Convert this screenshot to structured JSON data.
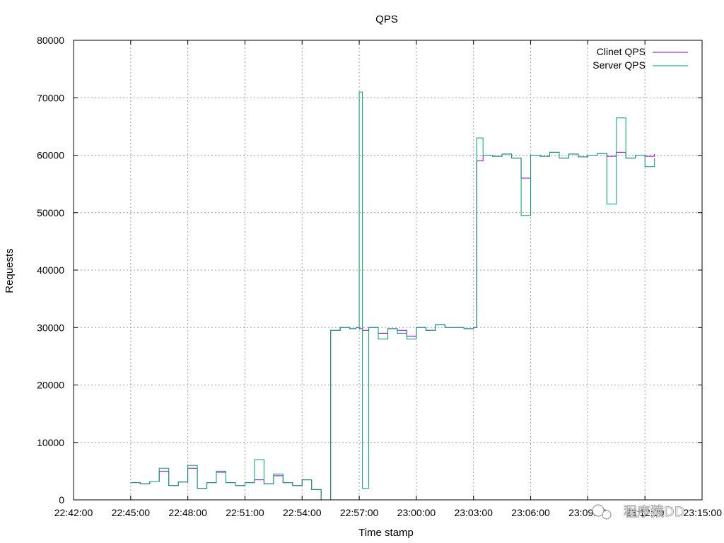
{
  "chart_data": {
    "type": "line",
    "title": "QPS",
    "xlabel": "Time stamp",
    "ylabel": "Requests",
    "ylim": [
      0,
      80000
    ],
    "yticks": [
      "0",
      "10000",
      "20000",
      "30000",
      "40000",
      "50000",
      "60000",
      "70000",
      "80000"
    ],
    "xlim": [
      "22:42:00",
      "23:15:00"
    ],
    "xticks": [
      "22:42:00",
      "22:45:00",
      "22:48:00",
      "22:51:00",
      "22:54:00",
      "22:57:00",
      "23:00:00",
      "23:03:00",
      "23:06:00",
      "23:09:00",
      "23:12:00",
      "23:15:00"
    ],
    "grid": true,
    "legend_position": "top-right",
    "series": [
      {
        "name": "Clinet QPS",
        "color": "#9400d3",
        "x": [
          "22:45:00",
          "22:45:30",
          "22:46:00",
          "22:46:30",
          "22:47:00",
          "22:47:30",
          "22:48:00",
          "22:48:30",
          "22:49:00",
          "22:49:30",
          "22:50:00",
          "22:50:30",
          "22:51:00",
          "22:51:30",
          "22:52:00",
          "22:52:30",
          "22:53:00",
          "22:53:30",
          "22:54:00",
          "22:54:30",
          "22:55:00",
          "22:55:30",
          "22:56:00",
          "22:56:30",
          "22:56:50",
          "22:57:00",
          "22:57:10",
          "22:57:30",
          "22:58:00",
          "22:58:30",
          "22:59:00",
          "22:59:30",
          "23:00:00",
          "23:00:30",
          "23:01:00",
          "23:01:30",
          "23:02:00",
          "23:02:30",
          "23:03:00",
          "23:03:10",
          "23:03:30",
          "23:04:00",
          "23:04:30",
          "23:05:00",
          "23:05:30",
          "23:06:00",
          "23:06:30",
          "23:07:00",
          "23:07:30",
          "23:08:00",
          "23:08:30",
          "23:09:00",
          "23:09:30",
          "23:10:00",
          "23:10:30",
          "23:11:00",
          "23:11:30",
          "23:12:00",
          "23:12:30"
        ],
        "values": [
          3000,
          2800,
          3200,
          5000,
          2500,
          3100,
          5500,
          2000,
          3000,
          4800,
          3000,
          2500,
          3000,
          3500,
          2800,
          4200,
          3000,
          2500,
          3500,
          1800,
          0,
          29500,
          30000,
          29800,
          30000,
          29800,
          29500,
          30000,
          29000,
          29800,
          29500,
          28500,
          30000,
          29500,
          30500,
          30000,
          30000,
          29800,
          30000,
          59000,
          60000,
          59800,
          60200,
          59500,
          56000,
          60000,
          59800,
          60500,
          59500,
          60200,
          59700,
          60000,
          60300,
          59800,
          60500,
          59500,
          60000,
          59800,
          60200
        ]
      },
      {
        "name": "Server QPS",
        "color": "#009e73",
        "x": [
          "22:45:00",
          "22:45:30",
          "22:46:00",
          "22:46:30",
          "22:47:00",
          "22:47:30",
          "22:48:00",
          "22:48:30",
          "22:49:00",
          "22:49:30",
          "22:50:00",
          "22:50:30",
          "22:51:00",
          "22:51:30",
          "22:52:00",
          "22:52:30",
          "22:53:00",
          "22:53:30",
          "22:54:00",
          "22:54:30",
          "22:55:00",
          "22:55:30",
          "22:56:00",
          "22:56:30",
          "22:56:50",
          "22:57:00",
          "22:57:10",
          "22:57:30",
          "22:58:00",
          "22:58:30",
          "22:59:00",
          "22:59:30",
          "23:00:00",
          "23:00:30",
          "23:01:00",
          "23:01:30",
          "23:02:00",
          "23:02:30",
          "23:03:00",
          "23:03:10",
          "23:03:30",
          "23:04:00",
          "23:04:30",
          "23:05:00",
          "23:05:30",
          "23:06:00",
          "23:06:30",
          "23:07:00",
          "23:07:30",
          "23:08:00",
          "23:08:30",
          "23:09:00",
          "23:09:30",
          "23:10:00",
          "23:10:30",
          "23:11:00",
          "23:11:30",
          "23:12:00",
          "23:12:30"
        ],
        "values": [
          3000,
          2800,
          3200,
          5500,
          2500,
          3100,
          6000,
          2000,
          3000,
          5000,
          3000,
          2500,
          3000,
          7000,
          2800,
          4500,
          3000,
          2500,
          3500,
          1800,
          0,
          29500,
          30000,
          29800,
          30000,
          71000,
          2000,
          30000,
          28000,
          29800,
          29000,
          28000,
          30000,
          29500,
          30500,
          30000,
          30000,
          29800,
          30000,
          63000,
          60000,
          59800,
          60200,
          59500,
          49500,
          60000,
          59800,
          60500,
          59500,
          60200,
          59700,
          60000,
          60300,
          51500,
          66500,
          59500,
          60000,
          58000,
          59500
        ]
      }
    ]
  },
  "watermark": {
    "text": "程序猿DD"
  }
}
